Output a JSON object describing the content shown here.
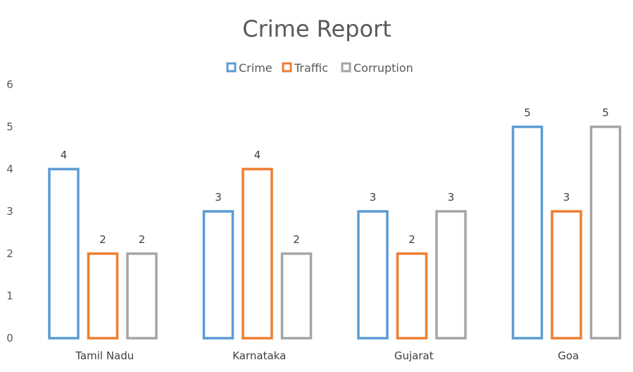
{
  "chart_data": {
    "type": "bar",
    "title": "Crime Report",
    "categories": [
      "Tamil Nadu",
      "Karnataka",
      "Gujarat",
      "Goa"
    ],
    "series": [
      {
        "name": "Crime",
        "values": [
          4,
          3,
          3,
          5
        ],
        "color": "#5B9BD5"
      },
      {
        "name": "Traffic",
        "values": [
          2,
          4,
          2,
          3
        ],
        "color": "#ED7D31"
      },
      {
        "name": "Corruption",
        "values": [
          2,
          2,
          3,
          5
        ],
        "color": "#A5A5A5"
      }
    ],
    "yticks": [
      "0",
      "1",
      "2",
      "3",
      "4",
      "5",
      "6"
    ],
    "ylim": [
      0,
      6
    ],
    "grid": false,
    "legend": "top-center",
    "bar_style": "outline",
    "data_labels": true
  }
}
